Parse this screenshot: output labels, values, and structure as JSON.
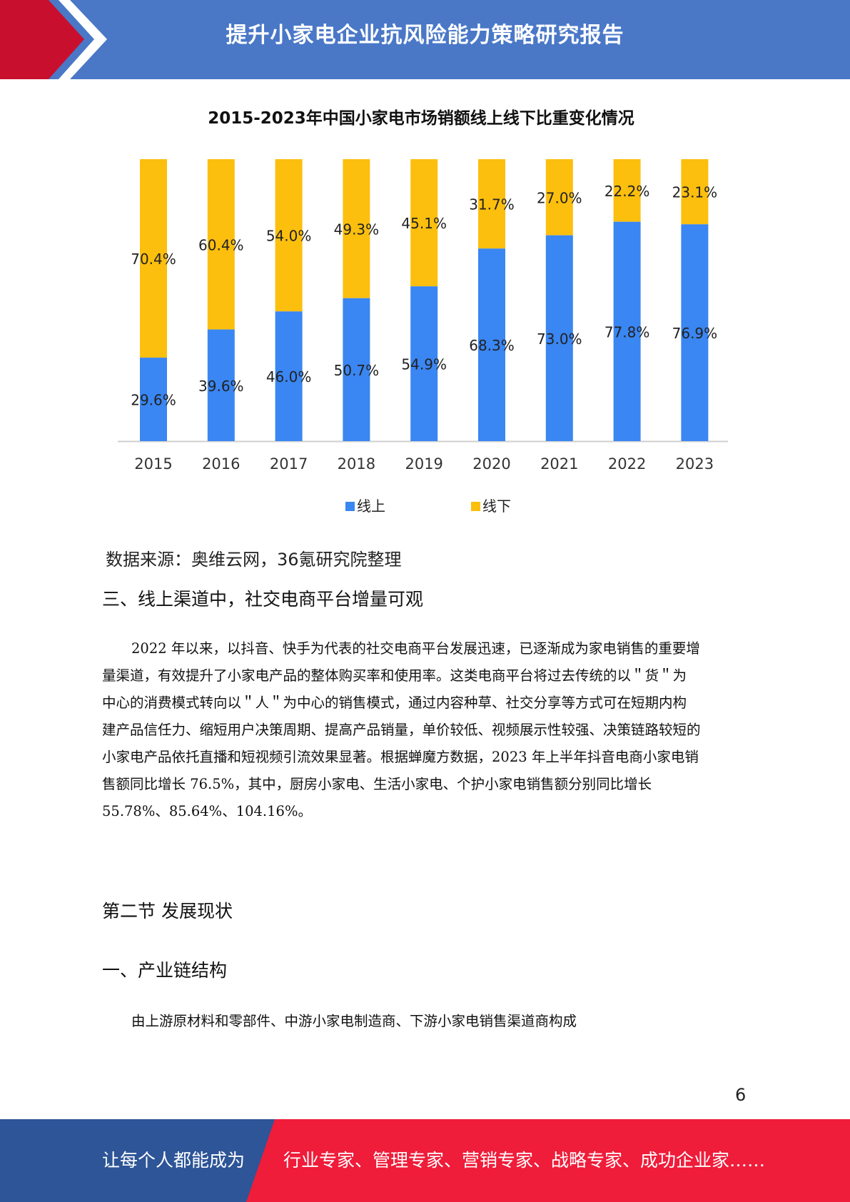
{
  "header": {
    "title": "提升小家电企业抗风险能力策略研究报告"
  },
  "chart_data": {
    "type": "bar",
    "stacked": true,
    "title": "2015-2023年中国小家电市场销额线上线下比重变化情况",
    "categories": [
      "2015",
      "2016",
      "2017",
      "2018",
      "2019",
      "2020",
      "2021",
      "2022",
      "2023"
    ],
    "series": [
      {
        "name": "线上",
        "color": "#3a86f2",
        "values": [
          29.6,
          39.6,
          46.0,
          50.7,
          54.9,
          68.3,
          73.0,
          77.8,
          76.9
        ]
      },
      {
        "name": "线下",
        "color": "#fcbf0e",
        "values": [
          70.4,
          60.4,
          54.0,
          49.3,
          45.1,
          31.7,
          27.0,
          22.2,
          23.1
        ]
      }
    ],
    "value_labels": {
      "线上": [
        "29.6%",
        "39.6%",
        "46.0%",
        "50.7%",
        "54.9%",
        "68.3%",
        "73.0%",
        "77.8%",
        "76.9%"
      ],
      "线下": [
        "70.4%",
        "60.4%",
        "54.0%",
        "49.3%",
        "45.1%",
        "31.7%",
        "27.0%",
        "22.2%",
        "23.1%"
      ]
    },
    "ylim": [
      0,
      100
    ],
    "legend_position": "bottom",
    "grid": false
  },
  "source_note": "数据来源：奥维云网，36氪研究院整理",
  "section3": {
    "heading": "三、线上渠道中，社交电商平台增量可观",
    "lines": [
      "2022 年以来，以抖音、快手为代表的社交电商平台发展迅速，已逐渐成为家电销售的重要增",
      "量渠道，有效提升了小家电产品的整体购买率和使用率。这类电商平台将过去传统的以＂货＂为",
      "中心的消费模式转向以＂人＂为中心的销售模式，通过内容种草、社交分享等方式可在短期内构",
      "建产品信任力、缩短用户决策周期、提高产品销量，单价较低、视频展示性较强、决策链路较短的",
      "小家电产品依托直播和短视频引流效果显著。根据蝉魔方数据，2023 年上半年抖音电商小家电销",
      "售额同比增长 76.5%，其中，厨房小家电、生活小家电、个护小家电销售额分别同比增长",
      "55.78%、85.64%、104.16%。"
    ]
  },
  "section_node": {
    "heading": "第二节  发展现状"
  },
  "section1": {
    "heading": "一、产业链结构",
    "text": "由上游原材料和零部件、中游小家电制造商、下游小家电销售渠道商构成"
  },
  "page_number": "6",
  "footer": {
    "left_text": "让每个人都能成为",
    "right_text": "行业专家、管理专家、营销专家、战略专家、成功企业家……",
    "left_color": "#2d5597",
    "right_color": "#ef1c3a"
  }
}
